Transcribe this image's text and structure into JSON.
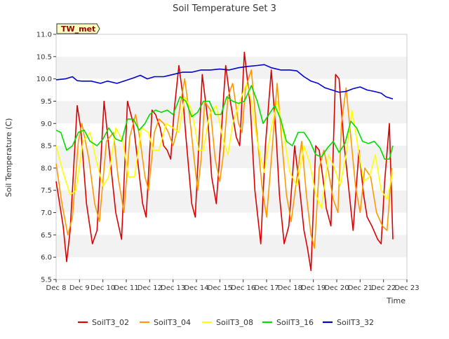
{
  "chart_data": {
    "type": "line",
    "title": "Soil Temperature Set 3",
    "xlabel": "Time",
    "ylabel": "Soil Temperature (C)",
    "station_label": "TW_met",
    "x_unit": "days since Dec 8",
    "xlim": [
      0,
      15
    ],
    "ylim": [
      5.5,
      11.0
    ],
    "x_ticks": [
      0,
      1,
      2,
      3,
      4,
      5,
      6,
      7,
      8,
      9,
      10,
      11,
      12,
      13,
      14,
      15
    ],
    "x_tick_labels": [
      "Dec 8",
      "Dec 9",
      "Dec 10",
      "Dec 11",
      "Dec 12",
      "Dec 13",
      "Dec 14",
      "Dec 15",
      "Dec 16",
      "Dec 17",
      "Dec 18",
      "Dec 19",
      "Dec 20",
      "Dec 21",
      "Dec 22",
      "Dec 23"
    ],
    "y_ticks": [
      5.5,
      6.0,
      6.5,
      7.0,
      7.5,
      8.0,
      8.5,
      9.0,
      9.5,
      10.0,
      10.5,
      11.0
    ],
    "y_tick_labels": [
      "5.5",
      "6.0",
      "6.5",
      "7.0",
      "7.5",
      "8.0",
      "8.5",
      "9.0",
      "9.5",
      "10.0",
      "10.5",
      "11.0"
    ],
    "grid": "alternating horizontal bands",
    "legend_position": "bottom",
    "series": [
      {
        "name": "SoilT3_02",
        "color": "#dd0000",
        "x": [
          0.0,
          0.3,
          0.45,
          0.6,
          0.9,
          1.05,
          1.3,
          1.55,
          1.75,
          2.05,
          2.35,
          2.55,
          2.8,
          3.05,
          3.3,
          3.5,
          3.7,
          3.85,
          4.1,
          4.25,
          4.45,
          4.6,
          4.75,
          4.9,
          5.05,
          5.25,
          5.4,
          5.55,
          5.8,
          5.95,
          6.1,
          6.25,
          6.5,
          6.65,
          6.85,
          7.05,
          7.25,
          7.45,
          7.7,
          7.85,
          8.05,
          8.3,
          8.5,
          8.75,
          8.95,
          9.2,
          9.4,
          9.55,
          9.75,
          9.95,
          10.2,
          10.4,
          10.6,
          10.75,
          10.9,
          11.1,
          11.25,
          11.45,
          11.55,
          11.75,
          11.95,
          12.1,
          12.3,
          12.5,
          12.7,
          12.95,
          13.15,
          13.3,
          13.5,
          13.75,
          13.9,
          14.05,
          14.25,
          14.4
        ],
        "values": [
          7.7,
          6.7,
          5.9,
          6.6,
          9.4,
          8.9,
          7.2,
          6.3,
          6.6,
          9.5,
          8.0,
          7.0,
          6.4,
          9.5,
          9.0,
          8.1,
          7.2,
          6.9,
          9.3,
          9.2,
          8.9,
          8.5,
          8.4,
          8.2,
          9.3,
          10.3,
          9.7,
          8.7,
          7.2,
          6.9,
          8.5,
          10.1,
          9.0,
          7.8,
          7.2,
          8.7,
          10.3,
          9.5,
          8.7,
          8.5,
          10.6,
          9.4,
          7.5,
          6.3,
          8.5,
          10.2,
          8.8,
          7.4,
          6.3,
          6.7,
          8.5,
          7.6,
          6.6,
          6.2,
          5.7,
          8.5,
          8.4,
          7.6,
          7.1,
          6.7,
          10.1,
          10.0,
          8.6,
          7.6,
          6.6,
          8.4,
          7.4,
          6.9,
          6.7,
          6.4,
          6.3,
          7.7,
          9.0,
          6.4
        ]
      },
      {
        "name": "SoilT3_04",
        "color": "#ff9900",
        "x": [
          0.0,
          0.25,
          0.5,
          0.7,
          0.95,
          1.1,
          1.4,
          1.65,
          1.85,
          2.15,
          2.45,
          2.65,
          2.9,
          3.15,
          3.4,
          3.6,
          3.8,
          3.95,
          4.2,
          4.4,
          4.6,
          4.8,
          5.0,
          5.15,
          5.3,
          5.5,
          5.7,
          5.9,
          6.05,
          6.2,
          6.35,
          6.6,
          6.8,
          7.0,
          7.15,
          7.35,
          7.55,
          7.8,
          7.95,
          8.1,
          8.35,
          8.55,
          8.8,
          9.0,
          9.25,
          9.45,
          9.65,
          9.85,
          10.05,
          10.3,
          10.5,
          10.7,
          10.9,
          11.05,
          11.25,
          11.45,
          11.65,
          11.85,
          12.05,
          12.2,
          12.4,
          12.6,
          12.8,
          13.0,
          13.2,
          13.45,
          13.7,
          13.95,
          14.15,
          14.35
        ],
        "values": [
          8.1,
          7.2,
          6.5,
          6.9,
          8.6,
          9.0,
          8.2,
          7.2,
          6.8,
          8.6,
          8.8,
          7.8,
          7.0,
          8.7,
          9.2,
          8.6,
          7.8,
          7.5,
          8.8,
          9.1,
          9.0,
          8.8,
          8.5,
          8.8,
          9.4,
          10.0,
          9.2,
          8.2,
          7.5,
          8.2,
          9.5,
          9.3,
          8.2,
          7.7,
          8.3,
          9.6,
          9.9,
          9.0,
          8.8,
          9.8,
          10.2,
          9.0,
          7.6,
          6.9,
          8.5,
          9.9,
          8.6,
          7.4,
          6.8,
          7.8,
          8.6,
          7.4,
          6.5,
          6.2,
          8.0,
          8.4,
          7.9,
          7.3,
          7.0,
          9.0,
          9.8,
          8.7,
          7.6,
          7.0,
          8.0,
          7.8,
          7.0,
          6.7,
          6.6,
          8.0
        ]
      },
      {
        "name": "SoilT3_08",
        "color": "#ffff00",
        "x": [
          0.0,
          0.3,
          0.6,
          0.85,
          1.15,
          1.45,
          1.75,
          2.0,
          2.25,
          2.55,
          2.85,
          3.1,
          3.35,
          3.65,
          3.95,
          4.15,
          4.4,
          4.7,
          5.0,
          5.25,
          5.5,
          5.8,
          6.1,
          6.3,
          6.55,
          6.85,
          7.15,
          7.35,
          7.55,
          7.85,
          8.15,
          8.35,
          8.6,
          8.9,
          9.2,
          9.45,
          9.75,
          10.0,
          10.3,
          10.6,
          10.85,
          11.1,
          11.35,
          11.65,
          11.9,
          12.15,
          12.4,
          12.65,
          12.9,
          13.15,
          13.4,
          13.65,
          13.9,
          14.15,
          14.4
        ],
        "values": [
          8.5,
          7.9,
          7.4,
          7.5,
          8.6,
          8.8,
          8.1,
          7.6,
          7.8,
          8.9,
          8.6,
          7.8,
          7.8,
          8.9,
          8.8,
          8.4,
          8.4,
          9.0,
          8.9,
          8.8,
          9.6,
          9.3,
          8.4,
          8.4,
          9.2,
          9.4,
          8.6,
          8.3,
          9.0,
          9.5,
          9.9,
          9.5,
          8.6,
          7.9,
          8.9,
          9.5,
          8.7,
          7.9,
          7.6,
          8.5,
          8.1,
          7.4,
          7.1,
          8.3,
          8.0,
          7.6,
          8.3,
          9.3,
          8.5,
          7.7,
          7.8,
          8.3,
          7.5,
          7.3,
          7.9
        ]
      },
      {
        "name": "SoilT3_16",
        "color": "#00dd00",
        "x": [
          0.0,
          0.2,
          0.45,
          0.7,
          0.95,
          1.2,
          1.45,
          1.75,
          2.0,
          2.25,
          2.55,
          2.8,
          3.05,
          3.3,
          3.55,
          3.8,
          4.0,
          4.25,
          4.5,
          4.75,
          5.0,
          5.3,
          5.55,
          5.8,
          6.05,
          6.3,
          6.55,
          6.8,
          7.05,
          7.3,
          7.55,
          7.8,
          8.05,
          8.35,
          8.6,
          8.85,
          9.1,
          9.35,
          9.6,
          9.85,
          10.1,
          10.35,
          10.6,
          10.85,
          11.1,
          11.35,
          11.6,
          11.85,
          12.1,
          12.35,
          12.6,
          12.85,
          13.1,
          13.35,
          13.6,
          13.85,
          14.05,
          14.25,
          14.4
        ],
        "values": [
          8.85,
          8.8,
          8.4,
          8.5,
          8.8,
          8.85,
          8.6,
          8.5,
          8.65,
          8.9,
          8.65,
          8.6,
          9.1,
          9.1,
          8.85,
          9.0,
          9.2,
          9.3,
          9.25,
          9.3,
          9.2,
          9.6,
          9.5,
          9.15,
          9.25,
          9.5,
          9.5,
          9.2,
          9.2,
          9.6,
          9.5,
          9.45,
          9.5,
          9.85,
          9.5,
          9.0,
          9.2,
          9.4,
          9.1,
          8.6,
          8.5,
          8.8,
          8.8,
          8.6,
          8.3,
          8.25,
          8.45,
          8.6,
          8.35,
          8.55,
          9.05,
          8.9,
          8.6,
          8.55,
          8.6,
          8.45,
          8.2,
          8.2,
          8.5
        ]
      },
      {
        "name": "SoilT3_32",
        "color": "#0000cc",
        "x": [
          0.0,
          0.4,
          0.7,
          0.9,
          1.1,
          1.5,
          1.9,
          2.2,
          2.6,
          2.9,
          3.3,
          3.6,
          3.9,
          4.2,
          4.6,
          5.0,
          5.4,
          5.8,
          6.2,
          6.6,
          7.0,
          7.4,
          7.8,
          8.2,
          8.6,
          8.9,
          9.2,
          9.6,
          10.0,
          10.3,
          10.6,
          10.9,
          11.2,
          11.5,
          11.8,
          12.1,
          12.4,
          12.7,
          13.0,
          13.3,
          13.6,
          13.9,
          14.1,
          14.4
        ],
        "values": [
          9.98,
          10.0,
          10.05,
          9.96,
          9.95,
          9.95,
          9.9,
          9.95,
          9.9,
          9.95,
          10.02,
          10.08,
          10.0,
          10.05,
          10.05,
          10.1,
          10.15,
          10.15,
          10.2,
          10.2,
          10.22,
          10.2,
          10.25,
          10.28,
          10.3,
          10.32,
          10.25,
          10.2,
          10.2,
          10.18,
          10.05,
          9.95,
          9.9,
          9.8,
          9.75,
          9.7,
          9.72,
          9.78,
          9.82,
          9.75,
          9.72,
          9.68,
          9.6,
          9.55
        ]
      }
    ]
  }
}
